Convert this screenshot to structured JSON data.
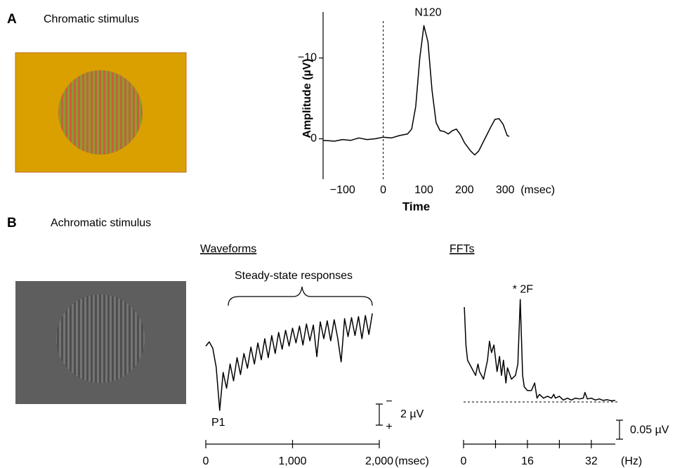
{
  "panels": [
    {
      "letter": "A",
      "label": "Chromatic stimulus"
    },
    {
      "letter": "B",
      "label": "Achromatic stimulus"
    }
  ],
  "chart_data": [
    {
      "type": "line",
      "xlabel": "Time",
      "ylabel": "Amplitude (µV)",
      "x_unit": "(msec)",
      "annotation": "N120",
      "color": "#000000",
      "x": [
        -148,
        -120,
        -100,
        -80,
        -60,
        -40,
        -20,
        0,
        20,
        40,
        60,
        70,
        80,
        90,
        100,
        110,
        120,
        130,
        140,
        150,
        160,
        170,
        180,
        190,
        200,
        215,
        225,
        235,
        250,
        265,
        275,
        285,
        295,
        305,
        310
      ],
      "values": [
        0.2,
        0.3,
        0.1,
        0.2,
        -0.1,
        0.1,
        0,
        -0.2,
        -0.1,
        -0.4,
        -0.6,
        -1.2,
        -4,
        -10,
        -14,
        -12,
        -6,
        -2,
        -1,
        -0.9,
        -0.6,
        -1,
        -1.2,
        -0.5,
        0.5,
        1.5,
        2,
        1.5,
        0,
        -1.5,
        -2.4,
        -2.5,
        -1.8,
        -0.4,
        -0.3
      ],
      "xlim": [
        -148,
        310
      ],
      "ylim": [
        5,
        -15
      ],
      "xticks": [
        {
          "value": -100,
          "label": "−100"
        },
        0,
        100,
        200,
        300
      ],
      "yticks": [
        {
          "value": -10,
          "label": "−10"
        },
        0
      ]
    },
    {
      "type": "line",
      "title": "Waveforms",
      "bracket_label": "Steady-state responses",
      "peak_label": "P1",
      "x_unit": "(msec)",
      "color": "#000000",
      "scale_bar": {
        "value": 2,
        "label": "2 µV"
      },
      "scale_signs": [
        "−",
        "+"
      ],
      "x": [
        0,
        40,
        80,
        120,
        160,
        200,
        240,
        280,
        320,
        360,
        400,
        440,
        480,
        520,
        560,
        600,
        640,
        680,
        720,
        760,
        800,
        840,
        880,
        920,
        960,
        1000,
        1040,
        1080,
        1120,
        1160,
        1200,
        1240,
        1280,
        1320,
        1360,
        1400,
        1440,
        1480,
        1520,
        1560,
        1600,
        1640,
        1680,
        1720,
        1760,
        1800,
        1840,
        1880,
        1920
      ],
      "values": [
        -0.5,
        -0.9,
        -0.3,
        1.5,
        5.6,
        2,
        3.5,
        1.2,
        2.8,
        0.6,
        2.2,
        0.2,
        1.6,
        -0.4,
        1.2,
        -0.8,
        0.8,
        -1.2,
        0.6,
        -1.5,
        0.2,
        -1.8,
        -0.2,
        -2,
        -0.5,
        -2.2,
        -0.8,
        -2.4,
        -0.6,
        -2.6,
        -1,
        -2.5,
        0.5,
        -2.8,
        -1.2,
        -2.9,
        -1,
        -3,
        -1.3,
        1,
        -3.1,
        -1.4,
        -3.2,
        -1.5,
        -3.3,
        -1.2,
        -3.4,
        -1.6,
        -3.6
      ],
      "xlim": [
        0,
        2000
      ],
      "xticks": [
        0,
        {
          "value": 1000,
          "label": "1,000"
        },
        {
          "value": 2000,
          "label": "2,000"
        }
      ]
    },
    {
      "type": "line",
      "title": "FFTs",
      "peak_label": "* 2F",
      "x_unit": "(Hz)",
      "color": "#000000",
      "scale_bar": {
        "value": 0.05,
        "label": "0.05 µV"
      },
      "x": [
        0.2,
        0.6,
        1,
        2,
        3,
        3.6,
        4,
        5,
        6,
        6.5,
        7,
        7.6,
        8.4,
        9,
        9.5,
        10,
        10.6,
        11,
        12,
        13,
        13.6,
        14.2,
        14.8,
        15.2,
        16,
        17,
        17.8,
        18.4,
        19,
        20,
        21,
        22,
        22.6,
        23,
        24,
        25,
        26,
        27,
        28,
        29,
        30,
        30.4,
        31,
        32,
        33,
        34,
        35,
        36,
        37,
        38
      ],
      "values": [
        0.25,
        0.15,
        0.11,
        0.09,
        0.07,
        0.1,
        0.08,
        0.06,
        0.11,
        0.16,
        0.13,
        0.15,
        0.08,
        0.12,
        0.07,
        0.11,
        0.05,
        0.09,
        0.06,
        0.07,
        0.1,
        0.27,
        0.07,
        0.04,
        0.03,
        0.03,
        0.05,
        0.01,
        0.02,
        0.01,
        0.015,
        0.01,
        0.02,
        0.01,
        0.015,
        0.005,
        0.01,
        0.005,
        0.01,
        0.008,
        0.01,
        0.025,
        0.008,
        0.01,
        0.005,
        0.008,
        0.004,
        0.006,
        0.003,
        0.004
      ],
      "xlim": [
        0,
        38
      ],
      "xticks": [
        0,
        16,
        32
      ],
      "minor_xticks": [
        8,
        24
      ]
    }
  ]
}
